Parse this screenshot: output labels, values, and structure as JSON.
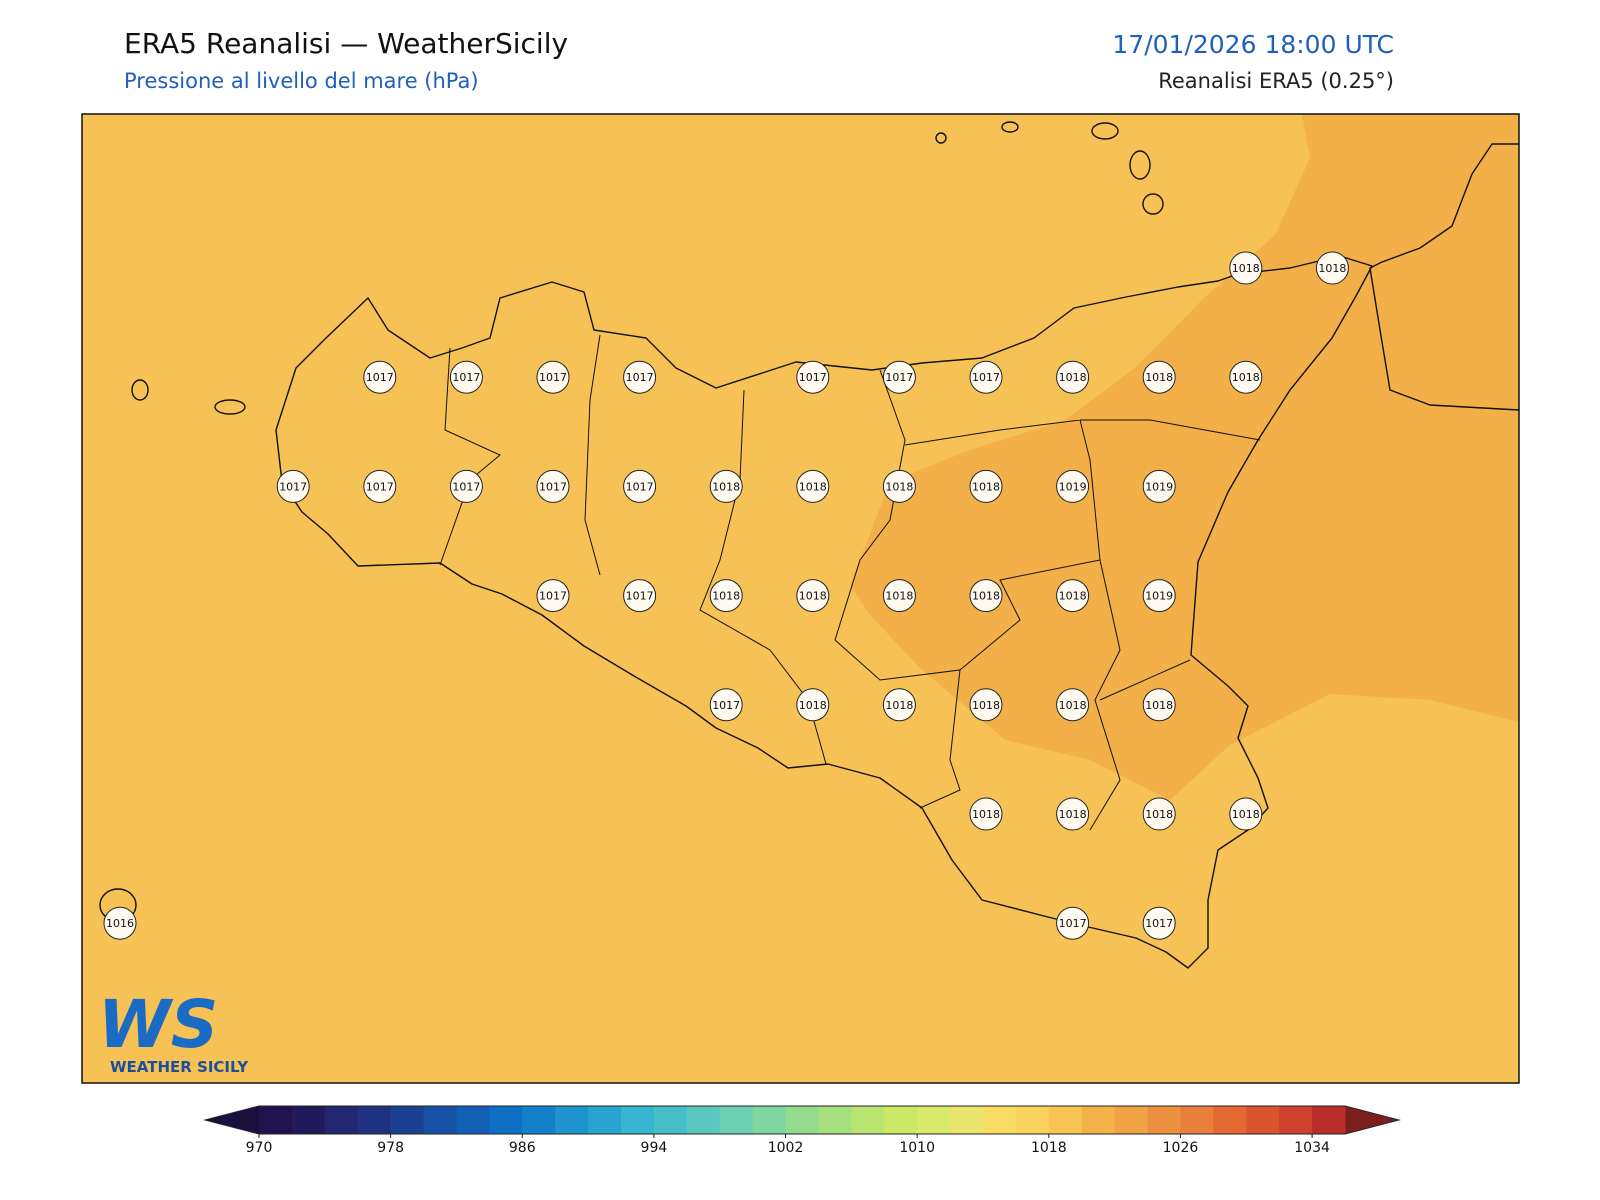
{
  "header": {
    "title": "ERA5 Reanalisi — WeatherSicily",
    "subtitle": "Pressione al livello del mare (hPa)",
    "datetime": "17/01/2026 18:00 UTC",
    "source": "Reanalisi ERA5 (0.25°)"
  },
  "stations": {
    "rows": [
      [
        null,
        null,
        null,
        null,
        null,
        null,
        null,
        null,
        null,
        null,
        null,
        null,
        null,
        1018,
        1018
      ],
      [
        null,
        null,
        null,
        1017,
        1017,
        1017,
        1017,
        null,
        1017,
        1017,
        1017,
        1018,
        1018,
        1018,
        null
      ],
      [
        null,
        null,
        1017,
        1017,
        1017,
        1017,
        1017,
        1018,
        1018,
        1018,
        1018,
        1019,
        1019,
        null,
        null
      ],
      [
        null,
        null,
        null,
        null,
        null,
        1017,
        1017,
        1018,
        1018,
        1018,
        1018,
        1018,
        1019,
        null,
        null
      ],
      [
        null,
        null,
        null,
        null,
        null,
        null,
        null,
        1017,
        1018,
        1018,
        1018,
        1018,
        1018,
        null,
        null
      ],
      [
        null,
        null,
        null,
        null,
        null,
        null,
        null,
        null,
        null,
        null,
        1018,
        1018,
        1018,
        1018,
        null
      ],
      [
        1016,
        null,
        null,
        null,
        null,
        null,
        null,
        null,
        null,
        null,
        null,
        1017,
        1017,
        null,
        null
      ]
    ]
  },
  "logo": {
    "mark": "WS",
    "name": "WEATHER SICILY"
  },
  "colorbar": {
    "lim": [
      970,
      1036
    ],
    "ticks": [
      970,
      978,
      986,
      994,
      1002,
      1010,
      1018,
      1026,
      1034
    ],
    "colors": [
      "#22124f",
      "#231a5e",
      "#232670",
      "#1f3282",
      "#1a3f93",
      "#1650a6",
      "#1160b5",
      "#0d70c4",
      "#1480cc",
      "#1f92d0",
      "#2aa3d2",
      "#37b4d0",
      "#48bfc8",
      "#5ac8bf",
      "#6dd0b2",
      "#80d6a0",
      "#93db8f",
      "#a6e07e",
      "#b8e46f",
      "#cae766",
      "#dbe96a",
      "#ebe46c",
      "#f8dc66",
      "#fad15c",
      "#f7c455",
      "#f4b24a",
      "#f0a244",
      "#ec9040",
      "#e87e39",
      "#e36933",
      "#d9532f",
      "#cd412d",
      "#bb2d2a"
    ],
    "under": "#1a0f3f",
    "over": "#7a1e1e"
  }
}
